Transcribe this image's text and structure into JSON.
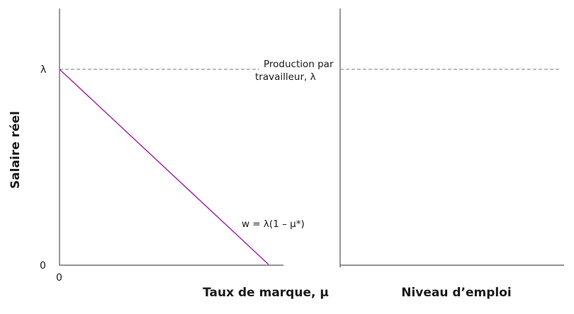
{
  "diagram": {
    "y_axis_title": "Salaire réel",
    "left_panel": {
      "x_axis_title": "Taux de marque, μ",
      "y_tick_top": "λ",
      "y_tick_zero": "0",
      "x_tick_zero": "0",
      "curve_label": "w = λ(1 – μ*)",
      "curve_color": "#a12aa8"
    },
    "right_panel": {
      "x_axis_title": "Niveau d’emploi"
    },
    "reference_line": {
      "label_line1": "Production par",
      "label_line2": "travailleur, λ",
      "color": "#8c97a8"
    }
  }
}
